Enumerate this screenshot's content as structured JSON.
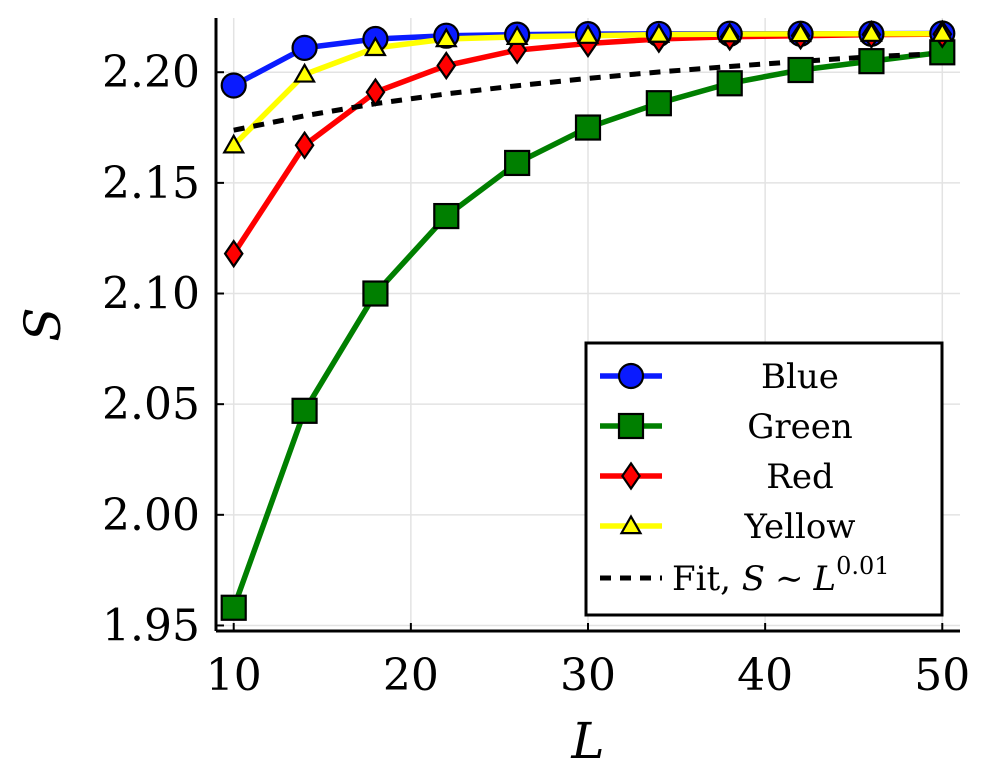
{
  "chart_data": {
    "type": "line",
    "title": "",
    "xlabel": "L",
    "ylabel": "S",
    "xlim": [
      9,
      51
    ],
    "ylim": [
      1.9475,
      2.2245
    ],
    "x_ticks": [
      10,
      20,
      30,
      40,
      50
    ],
    "y_ticks": [
      1.95,
      2.0,
      2.05,
      2.1,
      2.15,
      2.2
    ],
    "x_tick_labels": [
      "10",
      "20",
      "30",
      "40",
      "50"
    ],
    "y_tick_labels": [
      "1.95",
      "2.00",
      "2.05",
      "2.10",
      "2.15",
      "2.20"
    ],
    "grid": true,
    "legend_position": "lower-right",
    "x": [
      10,
      14,
      18,
      22,
      26,
      30,
      34,
      38,
      42,
      46,
      50
    ],
    "series": [
      {
        "name": "Blue",
        "color": "#0a1bff",
        "marker": "circle",
        "values": [
          2.194,
          2.211,
          2.215,
          2.2165,
          2.217,
          2.2172,
          2.2173,
          2.2174,
          2.2174,
          2.2174,
          2.2175
        ]
      },
      {
        "name": "Green",
        "color": "#007f00",
        "marker": "square",
        "values": [
          1.958,
          2.047,
          2.1,
          2.135,
          2.159,
          2.175,
          2.186,
          2.195,
          2.201,
          2.205,
          2.209
        ]
      },
      {
        "name": "Red",
        "color": "#ff0000",
        "marker": "diamond",
        "values": [
          2.118,
          2.167,
          2.191,
          2.203,
          2.21,
          2.213,
          2.215,
          2.216,
          2.2165,
          2.217,
          2.2172
        ]
      },
      {
        "name": "Yellow",
        "color": "#ffff00",
        "marker": "triangle",
        "values": [
          2.167,
          2.199,
          2.211,
          2.215,
          2.216,
          2.2165,
          2.217,
          2.2172,
          2.2173,
          2.2174,
          2.2174
        ]
      }
    ],
    "fit": {
      "name": "Fit",
      "label_prefix": "Fit, ",
      "label_var": "S",
      "label_sim": "∼",
      "label_base": "L",
      "label_exp": "0.01",
      "color": "#000000",
      "style": "dashed",
      "x": [
        10,
        14,
        18,
        22,
        26,
        30,
        34,
        38,
        42,
        46,
        50
      ],
      "values": [
        2.1738,
        2.1803,
        2.1858,
        2.1902,
        2.1939,
        2.1972,
        2.2001,
        2.2026,
        2.2049,
        2.207,
        2.2085
      ]
    }
  }
}
